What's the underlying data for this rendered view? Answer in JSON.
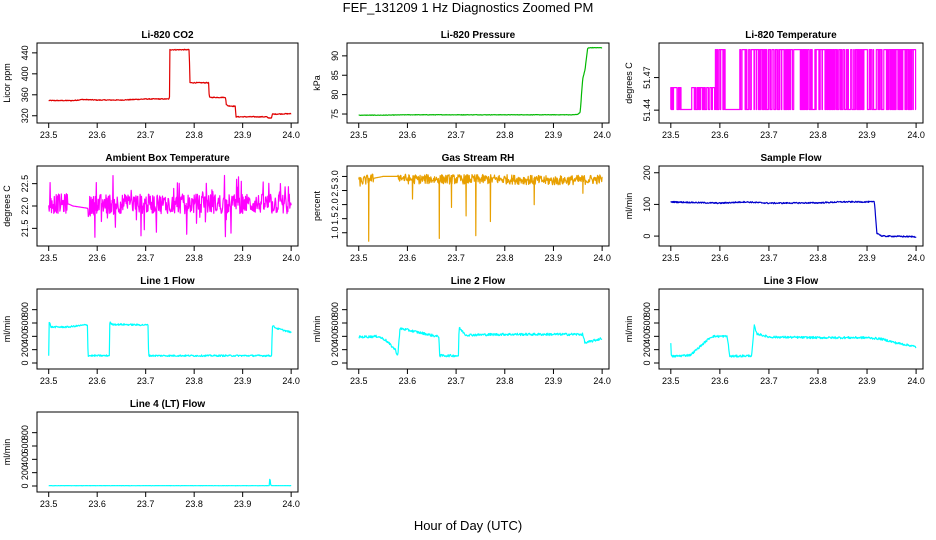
{
  "figure": {
    "title": "FEF_131209  1 Hz Diagnostics Zoomed PM",
    "xlabel": "Hour of Day (UTC)"
  },
  "chart_data": [
    {
      "id": "li820-co2",
      "type": "line",
      "title": "Li-820 CO2",
      "ylabel": "Licor ppm",
      "color": "#e00000",
      "xlim": [
        23.48,
        24.01
      ],
      "ylim": [
        310,
        455
      ],
      "xticks": [
        23.5,
        23.6,
        23.7,
        23.8,
        23.9,
        24.0
      ],
      "xtick_labels": [
        "23.5",
        "23.6",
        "23.7",
        "23.8",
        "23.9",
        "24.0"
      ],
      "yticks": [
        320,
        360,
        400,
        440
      ],
      "ytick_labels": [
        "320",
        "360",
        "400",
        "440"
      ],
      "x": [
        23.5,
        23.55,
        23.57,
        23.6,
        23.65,
        23.7,
        23.749,
        23.75,
        23.79,
        23.791,
        23.83,
        23.831,
        23.865,
        23.866,
        23.87,
        23.885,
        23.886,
        23.95,
        23.951,
        23.96,
        23.961,
        24.0
      ],
      "y": [
        349,
        349,
        351,
        350,
        350,
        352,
        352,
        446,
        446,
        383,
        383,
        355,
        355,
        341,
        339,
        338,
        318,
        318,
        316,
        316,
        323,
        324
      ],
      "noise": 0.8,
      "step_thresh": 10
    },
    {
      "id": "li820-pressure",
      "type": "line",
      "title": "Li-820 Pressure",
      "ylabel": "kPa",
      "color": "#00b800",
      "xlim": [
        23.48,
        24.01
      ],
      "ylim": [
        73.2,
        92.8
      ],
      "xticks": [
        23.5,
        23.6,
        23.7,
        23.8,
        23.9,
        24.0
      ],
      "xtick_labels": [
        "23.5",
        "23.6",
        "23.7",
        "23.8",
        "23.9",
        "24.0"
      ],
      "yticks": [
        75,
        80,
        85,
        90
      ],
      "ytick_labels": [
        "75",
        "80",
        "85",
        "90"
      ],
      "x": [
        23.5,
        23.55,
        23.6,
        23.7,
        23.8,
        23.9,
        23.94,
        23.95,
        23.955,
        23.96,
        23.965,
        23.97,
        23.972,
        24.0
      ],
      "y": [
        74.7,
        74.7,
        74.8,
        74.8,
        74.8,
        74.8,
        74.8,
        74.9,
        75.5,
        84,
        86.5,
        91.8,
        92.1,
        92.1
      ],
      "noise": 0.05,
      "step_thresh": 3
    },
    {
      "id": "li820-temperature",
      "type": "line",
      "title": "Li-820 Temperature",
      "ylabel": "degrees C",
      "color": "#ff00ff",
      "xlim": [
        23.48,
        24.01
      ],
      "ylim": [
        51.43,
        51.5
      ],
      "xticks": [
        23.5,
        23.6,
        23.7,
        23.8,
        23.9,
        24.0
      ],
      "xtick_labels": [
        "23.5",
        "23.6",
        "23.7",
        "23.8",
        "23.9",
        "24.0"
      ],
      "yticks": [
        51.44,
        51.47
      ],
      "ytick_labels": [
        "51.44",
        "51.47"
      ],
      "levels": [
        51.4406,
        51.4608,
        51.4958
      ],
      "segments": [
        {
          "x0": 23.5,
          "x1": 23.59,
          "lo": 51.4406,
          "hi": 51.4608,
          "p": 0.55,
          "gap": [
            23.52,
            23.54
          ]
        },
        {
          "x0": 23.59,
          "x1": 24.0,
          "lo": 51.4406,
          "hi": 51.4958,
          "p": 0.6,
          "gap": [
            23.61,
            23.64
          ]
        }
      ]
    },
    {
      "id": "ambient-box-temperature",
      "type": "line",
      "title": "Ambient Box Temperature",
      "ylabel": "degrees C",
      "color": "#ff00ff",
      "xlim": [
        23.48,
        24.01
      ],
      "ylim": [
        21.15,
        22.85
      ],
      "xticks": [
        23.5,
        23.6,
        23.7,
        23.8,
        23.9,
        24.0
      ],
      "xtick_labels": [
        "23.5",
        "23.6",
        "23.7",
        "23.8",
        "23.9",
        "24.0"
      ],
      "yticks": [
        21.5,
        22.0,
        22.5
      ],
      "ytick_labels": [
        "21.5",
        "22.0",
        "22.5"
      ],
      "x": [
        23.5,
        23.54,
        23.55,
        23.58,
        23.6,
        23.7,
        23.8,
        23.9,
        24.0
      ],
      "y": [
        22.05,
        22.05,
        22.0,
        21.95,
        22.05,
        22.05,
        22.05,
        22.05,
        22.05
      ],
      "noise": 0.22,
      "spike_range": [
        21.3,
        22.7
      ],
      "gap": [
        23.54,
        23.58
      ]
    },
    {
      "id": "gas-stream-rh",
      "type": "line",
      "title": "Gas Stream RH",
      "ylabel": "percent",
      "color": "#e8a000",
      "xlim": [
        23.48,
        24.01
      ],
      "ylim": [
        0.6,
        3.3
      ],
      "xticks": [
        23.5,
        23.6,
        23.7,
        23.8,
        23.9,
        24.0
      ],
      "xtick_labels": [
        "23.5",
        "23.6",
        "23.7",
        "23.8",
        "23.9",
        "24.0"
      ],
      "yticks": [
        1.0,
        1.5,
        2.0,
        2.5,
        3.0
      ],
      "ytick_labels": [
        "1.0",
        "1.5",
        "2.0",
        "2.5",
        "3.0"
      ],
      "x": [
        23.5,
        23.52,
        23.55,
        23.58,
        23.6,
        23.7,
        23.8,
        23.9,
        24.0
      ],
      "y": [
        2.8,
        2.9,
        3.0,
        3.0,
        2.9,
        2.9,
        2.9,
        2.85,
        2.9
      ],
      "noise": 0.17,
      "dips": [
        [
          23.52,
          0.7
        ],
        [
          23.665,
          0.8
        ],
        [
          23.74,
          0.9
        ],
        [
          23.77,
          1.4
        ],
        [
          23.72,
          1.6
        ],
        [
          23.86,
          2.0
        ],
        [
          23.69,
          1.9
        ],
        [
          23.61,
          2.2
        ],
        [
          23.96,
          2.4
        ]
      ],
      "gap": [
        23.53,
        23.58
      ]
    },
    {
      "id": "sample-flow",
      "type": "line",
      "title": "Sample Flow",
      "ylabel": "ml/min",
      "color": "#0000cc",
      "xlim": [
        23.48,
        24.01
      ],
      "ylim": [
        -25,
        215
      ],
      "xticks": [
        23.5,
        23.6,
        23.7,
        23.8,
        23.9,
        24.0
      ],
      "xtick_labels": [
        "23.5",
        "23.6",
        "23.7",
        "23.8",
        "23.9",
        "24.0"
      ],
      "yticks": [
        0,
        100,
        200
      ],
      "ytick_labels": [
        "0",
        "100",
        "200"
      ],
      "x": [
        23.5,
        23.55,
        23.6,
        23.65,
        23.7,
        23.8,
        23.85,
        23.915,
        23.92,
        23.93,
        24.0
      ],
      "y": [
        108,
        106,
        104,
        108,
        104,
        105,
        108,
        108,
        10,
        0,
        -2
      ],
      "noise": 2.0,
      "step_thresh": 30
    },
    {
      "id": "line1-flow",
      "type": "line",
      "title": "Line 1 Flow",
      "ylabel": "ml/min",
      "color": "#00ffff",
      "xlim": [
        23.48,
        24.01
      ],
      "ylim": [
        -60,
        1080
      ],
      "xticks": [
        23.5,
        23.6,
        23.7,
        23.8,
        23.9,
        24.0
      ],
      "xtick_labels": [
        "23.5",
        "23.6",
        "23.7",
        "23.8",
        "23.9",
        "24.0"
      ],
      "yticks": [
        0,
        200,
        400,
        600,
        800
      ],
      "ytick_labels": [
        "0",
        "200",
        "400",
        "600",
        "800"
      ],
      "x": [
        23.5,
        23.501,
        23.505,
        23.54,
        23.58,
        23.581,
        23.625,
        23.626,
        23.63,
        23.705,
        23.706,
        23.96,
        23.961,
        23.97,
        24.0
      ],
      "y": [
        110,
        620,
        540,
        540,
        575,
        110,
        110,
        615,
        580,
        570,
        110,
        110,
        560,
        520,
        460
      ],
      "noise": 12,
      "step_thresh": 150
    },
    {
      "id": "line2-flow",
      "type": "line",
      "title": "Line 2 Flow",
      "ylabel": "ml/min",
      "color": "#00ffff",
      "xlim": [
        23.48,
        24.01
      ],
      "ylim": [
        -60,
        1080
      ],
      "xticks": [
        23.5,
        23.6,
        23.7,
        23.8,
        23.9,
        24.0
      ],
      "xtick_labels": [
        "23.5",
        "23.6",
        "23.7",
        "23.8",
        "23.9",
        "24.0"
      ],
      "yticks": [
        0,
        200,
        400,
        600,
        800
      ],
      "ytick_labels": [
        "0",
        "200",
        "400",
        "600",
        "800"
      ],
      "x": [
        23.5,
        23.54,
        23.555,
        23.575,
        23.58,
        23.585,
        23.66,
        23.665,
        23.666,
        23.7,
        23.705,
        23.706,
        23.72,
        23.8,
        23.96,
        23.965,
        24.0
      ],
      "y": [
        390,
        400,
        345,
        200,
        110,
        520,
        400,
        400,
        110,
        110,
        110,
        530,
        420,
        430,
        430,
        300,
        370
      ],
      "noise": 18,
      "step_thresh": 150
    },
    {
      "id": "line3-flow",
      "type": "line",
      "title": "Line 3 Flow",
      "ylabel": "ml/min",
      "color": "#00ffff",
      "xlim": [
        23.48,
        24.01
      ],
      "ylim": [
        -60,
        1080
      ],
      "xticks": [
        23.5,
        23.6,
        23.7,
        23.8,
        23.9,
        24.0
      ],
      "xtick_labels": [
        "23.5",
        "23.6",
        "23.7",
        "23.8",
        "23.9",
        "24.0"
      ],
      "yticks": [
        0,
        200,
        400,
        600,
        800
      ],
      "ytick_labels": [
        "0",
        "200",
        "400",
        "600",
        "800"
      ],
      "x": [
        23.5,
        23.501,
        23.505,
        23.54,
        23.58,
        23.585,
        23.615,
        23.62,
        23.621,
        23.665,
        23.67,
        23.675,
        23.7,
        23.8,
        23.9,
        23.93,
        23.96,
        23.99,
        24.0
      ],
      "y": [
        300,
        100,
        100,
        120,
        380,
        400,
        400,
        100,
        100,
        110,
        560,
        440,
        390,
        380,
        380,
        360,
        300,
        260,
        240
      ],
      "noise": 16,
      "step_thresh": 150
    },
    {
      "id": "line4-lt-flow",
      "type": "line",
      "title": "Line 4 (LT) Flow",
      "ylabel": "ml/min",
      "color": "#00ffff",
      "xlim": [
        23.48,
        24.01
      ],
      "ylim": [
        -60,
        1080
      ],
      "xticks": [
        23.5,
        23.6,
        23.7,
        23.8,
        23.9,
        24.0
      ],
      "xtick_labels": [
        "23.5",
        "23.6",
        "23.7",
        "23.8",
        "23.9",
        "24.0"
      ],
      "yticks": [
        0,
        200,
        400,
        600,
        800
      ],
      "ytick_labels": [
        "0",
        "200",
        "400",
        "600",
        "800"
      ],
      "x": [
        23.5,
        23.7,
        23.955,
        23.956,
        23.958,
        23.96,
        24.0
      ],
      "y": [
        5,
        5,
        5,
        130,
        10,
        5,
        5
      ],
      "noise": 1.5,
      "step_thresh": 50
    }
  ]
}
